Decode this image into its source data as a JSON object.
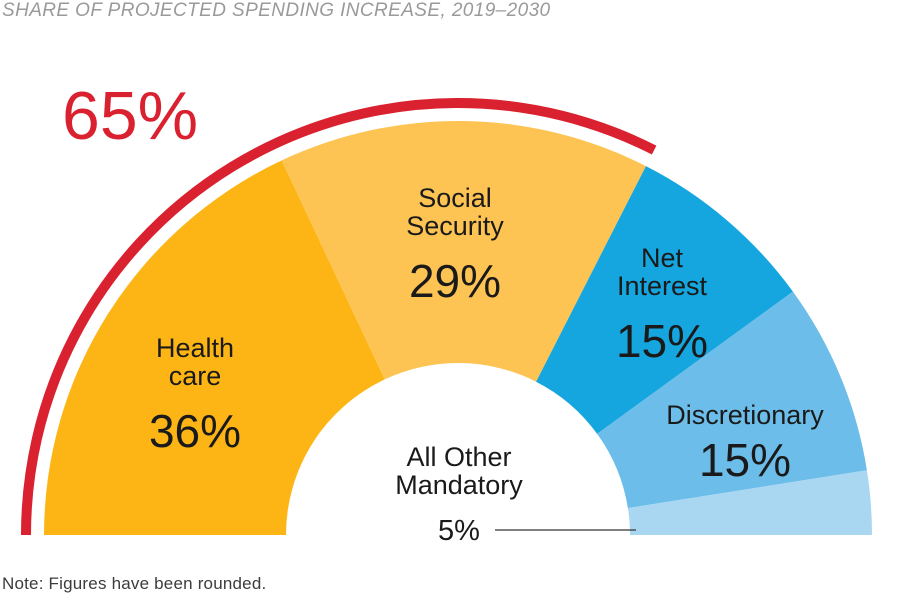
{
  "chart_data": {
    "type": "pie",
    "variant": "half-donut",
    "title": "SHARE OF PROJECTED SPENDING INCREASE, 2019–2030",
    "note": "Note: Figures have been rounded.",
    "slices": [
      {
        "name": "Health care",
        "name_lines": [
          "Health",
          "care"
        ],
        "value": 36,
        "value_label": "36%",
        "color": "#fdb515"
      },
      {
        "name": "Social Security",
        "name_lines": [
          "Social",
          "Security"
        ],
        "value": 29,
        "value_label": "29%",
        "color": "#fdc453"
      },
      {
        "name": "Net Interest",
        "name_lines": [
          "Net",
          "Interest"
        ],
        "value": 15,
        "value_label": "15%",
        "color": "#16a6df"
      },
      {
        "name": "Discretionary",
        "name_lines": [
          "Discretionary"
        ],
        "value": 15,
        "value_label": "15%",
        "color": "#6cbde9"
      },
      {
        "name": "All Other Mandatory",
        "name_lines": [
          "All Other",
          "Mandatory"
        ],
        "value": 5,
        "value_label": "5%",
        "color": "#a9d7f2"
      }
    ],
    "highlight": {
      "label": "65%",
      "value": 65,
      "covers": [
        "Health care",
        "Social Security"
      ],
      "color": "#d9212f"
    }
  }
}
